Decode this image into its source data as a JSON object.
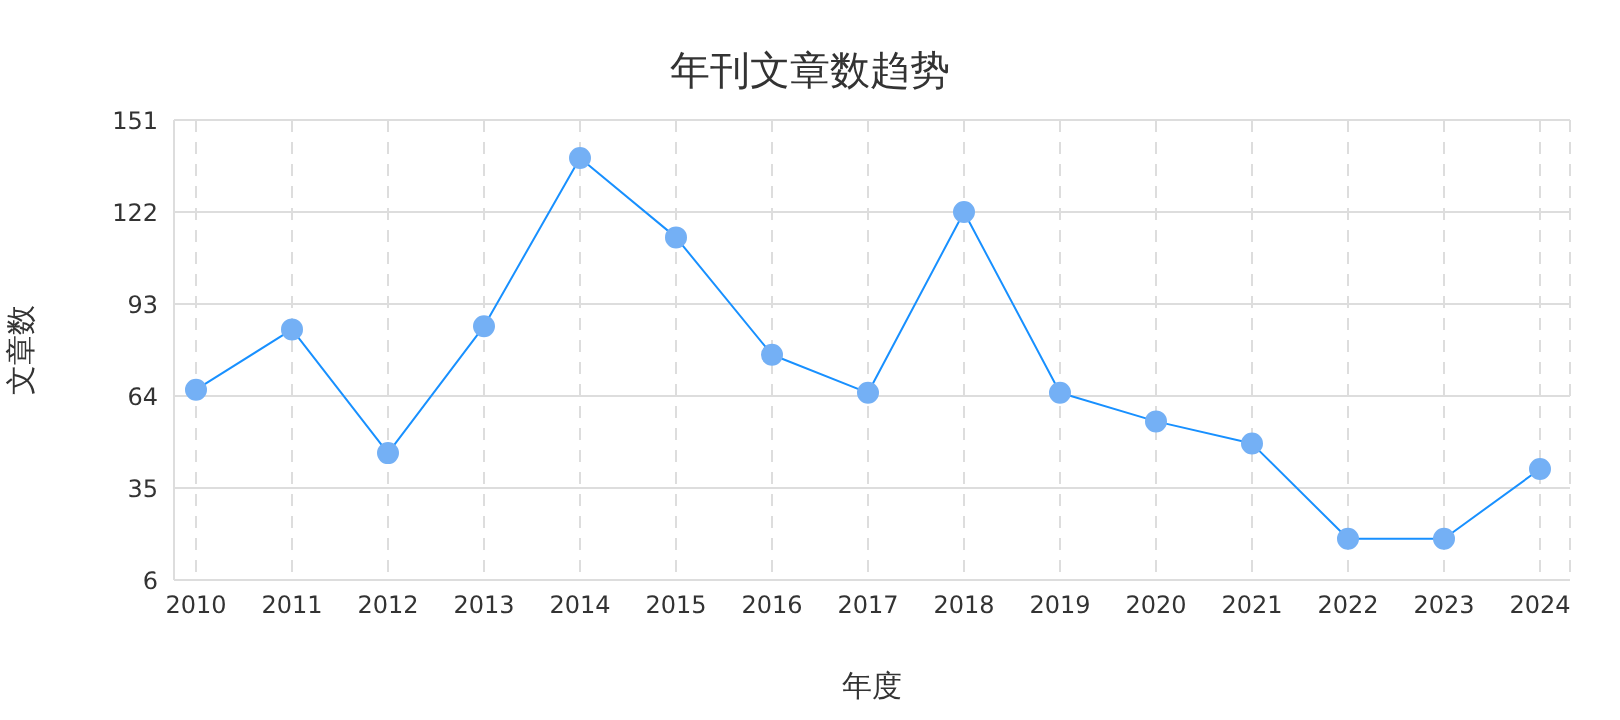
{
  "chart_data": {
    "type": "line",
    "title": "年刊文章数趋势",
    "xlabel": "年度",
    "ylabel": "文章数",
    "categories": [
      "2010",
      "2011",
      "2012",
      "2013",
      "2014",
      "2015",
      "2016",
      "2017",
      "2018",
      "2019",
      "2020",
      "2021",
      "2022",
      "2023",
      "2024"
    ],
    "series": [
      {
        "color": "#1890ff",
        "values": [
          66,
          85,
          46,
          86,
          139,
          114,
          77,
          65,
          122,
          65,
          56,
          49,
          19,
          19,
          41
        ]
      }
    ],
    "ylim": [
      6,
      151
    ],
    "yticks": [
      6,
      35,
      64,
      93,
      122,
      151
    ],
    "grid": true,
    "marker": "circle",
    "line_style": "solid"
  }
}
